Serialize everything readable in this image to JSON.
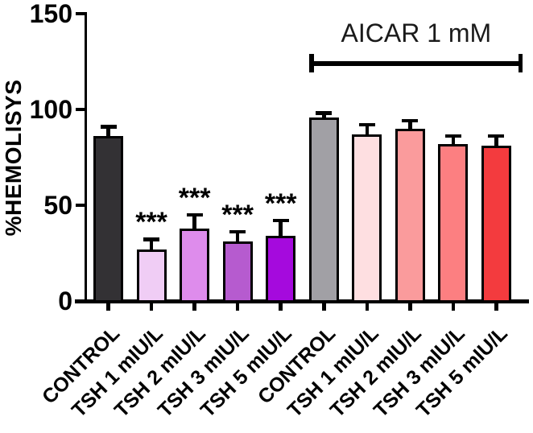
{
  "chart_data": {
    "type": "bar",
    "title": "",
    "xlabel": "",
    "ylabel": "%HEMOLISYS",
    "ylim": [
      0,
      150
    ],
    "yticks": [
      0,
      50,
      100,
      150
    ],
    "grid": false,
    "legend": "none",
    "categories": [
      "CONTROL",
      "TSH 1 mIU/L",
      "TSH 2 mIU/L",
      "TSH 3 mIU/L",
      "TSH 5 mIU/L",
      "CONTROL",
      "TSH 1 mIU/L",
      "TSH 2 mIU/L",
      "TSH 3 mIU/L",
      "TSH 5 mIU/L"
    ],
    "series": [
      {
        "name": "%HEMOLISYS",
        "values": [
          86,
          27,
          38,
          31,
          34,
          96,
          87,
          90,
          82,
          81
        ],
        "errors_plus": [
          6,
          6,
          8,
          6,
          9,
          3,
          6,
          5,
          5,
          6
        ]
      }
    ],
    "significance_labels": [
      "",
      "***",
      "***",
      "***",
      "***",
      "",
      "",
      "",
      "",
      ""
    ],
    "bar_fill_colors": [
      "#333134",
      "#F0CDF5",
      "#DE8CEC",
      "#B65BCF",
      "#A50ADD",
      "#A1A0A5",
      "#FEDFE1",
      "#FA9B9C",
      "#FC7F81",
      "#F33B3E"
    ],
    "bar_border_color": "#000000",
    "axis_color": "#000000",
    "error_bar_color": "#000000",
    "group_annotation": {
      "label": "AICAR 1 mM",
      "start_category_index": 5,
      "end_category_index": 9
    }
  }
}
